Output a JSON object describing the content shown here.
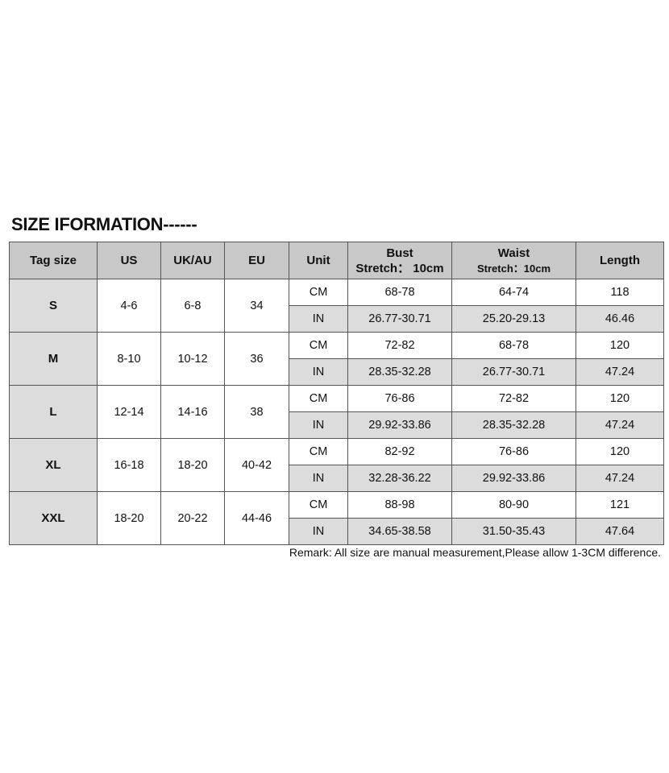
{
  "title": "SIZE IFORMATION------",
  "headers": {
    "tag": "Tag size",
    "us": "US",
    "ukau": "UK/AU",
    "eu": "EU",
    "unit": "Unit",
    "bust": "Bust",
    "bust_sub": "Stretch： 10cm",
    "waist": "Waist",
    "waist_sub": "Stretch：10cm",
    "length": "Length"
  },
  "rows": [
    {
      "tag": "S",
      "us": "4-6",
      "ukau": "6-8",
      "eu": "34",
      "cm": {
        "unit": "CM",
        "bust": "68-78",
        "waist": "64-74",
        "length": "118"
      },
      "in": {
        "unit": "IN",
        "bust": "26.77-30.71",
        "waist": "25.20-29.13",
        "length": "46.46"
      }
    },
    {
      "tag": "M",
      "us": "8-10",
      "ukau": "10-12",
      "eu": "36",
      "cm": {
        "unit": "CM",
        "bust": "72-82",
        "waist": "68-78",
        "length": "120"
      },
      "in": {
        "unit": "IN",
        "bust": "28.35-32.28",
        "waist": "26.77-30.71",
        "length": "47.24"
      }
    },
    {
      "tag": "L",
      "us": "12-14",
      "ukau": "14-16",
      "eu": "38",
      "cm": {
        "unit": "CM",
        "bust": "76-86",
        "waist": "72-82",
        "length": "120"
      },
      "in": {
        "unit": "IN",
        "bust": "29.92-33.86",
        "waist": "28.35-32.28",
        "length": "47.24"
      }
    },
    {
      "tag": "XL",
      "us": "16-18",
      "ukau": "18-20",
      "eu": "40-42",
      "cm": {
        "unit": "CM",
        "bust": "82-92",
        "waist": "76-86",
        "length": "120"
      },
      "in": {
        "unit": "IN",
        "bust": "32.28-36.22",
        "waist": "29.92-33.86",
        "length": "47.24"
      }
    },
    {
      "tag": "XXL",
      "us": "18-20",
      "ukau": "20-22",
      "eu": "44-46",
      "cm": {
        "unit": "CM",
        "bust": "88-98",
        "waist": "80-90",
        "length": "121"
      },
      "in": {
        "unit": "IN",
        "bust": "34.65-38.58",
        "waist": "31.50-35.43",
        "length": "47.64"
      }
    }
  ],
  "remark": "Remark: All size are manual measurement,Please allow 1-3CM difference."
}
